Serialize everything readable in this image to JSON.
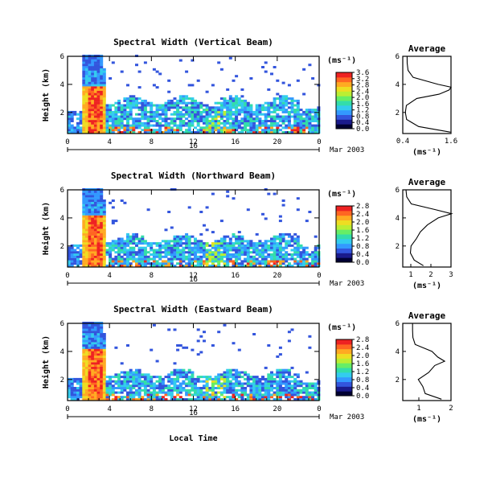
{
  "colorbar_unit": "(ms⁻¹)",
  "colormap": [
    "#000033",
    "#1a1a8c",
    "#3355dd",
    "#3399ff",
    "#33ccee",
    "#33ddaa",
    "#66ee66",
    "#bbee33",
    "#eedd22",
    "#ffaa22",
    "#ff6622",
    "#ee2222"
  ],
  "panels": [
    {
      "title": "Spectral Width (Vertical Beam)",
      "ylabel": "Height (km)",
      "yticks": [
        "2",
        "4",
        "6"
      ],
      "xticks": [
        "0",
        "4",
        "8",
        "12",
        "16",
        "20",
        "0"
      ],
      "day_label": "16",
      "month_label": "Mar 2003",
      "cb_ticks": [
        "0.0",
        "0.4",
        "0.8",
        "1.2",
        "1.6",
        "2.0",
        "2.4",
        "2.8",
        "3.2",
        "3.6"
      ],
      "avg_title": "Average",
      "avg_xticks": [
        "0.4",
        "1.6"
      ],
      "avg_yticks": [
        "2",
        "4",
        "6"
      ],
      "avg_xlabel": "(ms⁻¹)"
    },
    {
      "title": "Spectral Width (Northward Beam)",
      "ylabel": "Height (km)",
      "yticks": [
        "2",
        "4",
        "6"
      ],
      "xticks": [
        "0",
        "4",
        "8",
        "12",
        "16",
        "20",
        "0"
      ],
      "day_label": "16",
      "month_label": "Mar 2003",
      "cb_ticks": [
        "0.0",
        "0.4",
        "0.8",
        "1.2",
        "1.6",
        "2.0",
        "2.4",
        "2.8"
      ],
      "avg_title": "Average",
      "avg_xticks": [
        "1",
        "2",
        "3"
      ],
      "avg_yticks": [
        "2",
        "4",
        "6"
      ],
      "avg_xlabel": "(ms⁻¹)"
    },
    {
      "title": "Spectral Width (Eastward Beam)",
      "ylabel": "Height (km)",
      "yticks": [
        "2",
        "4",
        "6"
      ],
      "xticks": [
        "0",
        "4",
        "8",
        "12",
        "16",
        "20",
        "0"
      ],
      "day_label": "16",
      "month_label": "Mar 2003",
      "cb_ticks": [
        "0.0",
        "0.4",
        "0.8",
        "1.2",
        "1.6",
        "2.0",
        "2.4",
        "2.8"
      ],
      "avg_title": "Average",
      "avg_xticks": [
        "1",
        "2"
      ],
      "avg_yticks": [
        "2",
        "4",
        "6"
      ],
      "avg_xlabel": "(ms⁻¹)"
    }
  ],
  "bottom_xlabel": "Local Time",
  "chart_data": [
    {
      "type": "heatmap",
      "title": "Spectral Width (Vertical Beam)",
      "ylabel": "Height (km)",
      "xlim": [
        0,
        24
      ],
      "ylim": [
        0.5,
        6.0
      ],
      "colorbar_range": [
        0,
        3.6
      ],
      "x_values_hours": [
        0,
        4,
        8,
        12,
        16,
        20,
        24
      ],
      "regions": [
        {
          "x": [
            1.5,
            3.5
          ],
          "y": [
            0.5,
            5.0
          ],
          "level": "high (2.4-3.6)"
        },
        {
          "x": [
            3.5,
            24
          ],
          "y": [
            0.5,
            2.8
          ],
          "level": "low (0.4-1.2)"
        }
      ],
      "average_profile": {
        "title": "Average",
        "xlim": [
          0.4,
          1.6
        ],
        "height": [
          0.6,
          1.0,
          1.5,
          2.0,
          2.5,
          3.0,
          3.3,
          3.6,
          3.8,
          4.0,
          4.5,
          5.0,
          5.5,
          6.0
        ],
        "value": [
          1.6,
          0.8,
          0.5,
          0.45,
          0.5,
          0.75,
          1.3,
          1.55,
          1.6,
          1.3,
          0.65,
          0.55,
          0.5,
          0.5
        ]
      }
    },
    {
      "type": "heatmap",
      "title": "Spectral Width (Northward Beam)",
      "ylabel": "Height (km)",
      "xlim": [
        0,
        24
      ],
      "ylim": [
        0.5,
        6.0
      ],
      "colorbar_range": [
        0,
        2.8
      ],
      "x_values_hours": [
        0,
        4,
        8,
        12,
        16,
        20,
        24
      ],
      "regions": [
        {
          "x": [
            1.5,
            3.5
          ],
          "y": [
            0.5,
            5.3
          ],
          "level": "high (2.0-2.8)"
        },
        {
          "x": [
            3.5,
            24
          ],
          "y": [
            0.5,
            2.5
          ],
          "level": "low (0.4-1.2)"
        }
      ],
      "average_profile": {
        "title": "Average",
        "xlim": [
          0.6,
          3.0
        ],
        "height": [
          0.6,
          1.0,
          1.5,
          2.0,
          2.5,
          3.0,
          3.5,
          4.0,
          4.3,
          4.6,
          5.0,
          5.5,
          6.0
        ],
        "value": [
          1.6,
          1.2,
          1.0,
          1.0,
          1.3,
          1.5,
          1.8,
          2.4,
          3.0,
          2.2,
          1.0,
          0.8,
          0.8
        ]
      }
    },
    {
      "type": "heatmap",
      "title": "Spectral Width (Eastward Beam)",
      "ylabel": "Height (km)",
      "xlim": [
        0,
        24
      ],
      "ylim": [
        0.5,
        6.0
      ],
      "colorbar_range": [
        0,
        2.8
      ],
      "x_values_hours": [
        0,
        4,
        8,
        12,
        16,
        20,
        24
      ],
      "regions": [
        {
          "x": [
            1.5,
            3.5
          ],
          "y": [
            0.5,
            5.3
          ],
          "level": "high (2.0-2.8)"
        },
        {
          "x": [
            3.5,
            24
          ],
          "y": [
            0.5,
            2.4
          ],
          "level": "low (0.4-1.2)"
        }
      ],
      "average_profile": {
        "title": "Average",
        "xlim": [
          0.5,
          2.0
        ],
        "height": [
          0.6,
          1.0,
          1.5,
          2.0,
          2.5,
          3.0,
          3.3,
          3.6,
          4.0,
          4.5,
          5.0,
          5.5,
          6.0
        ],
        "value": [
          1.7,
          1.2,
          1.1,
          1.0,
          1.3,
          1.5,
          1.8,
          1.6,
          1.4,
          0.9,
          0.8,
          0.8,
          0.8
        ]
      }
    }
  ]
}
